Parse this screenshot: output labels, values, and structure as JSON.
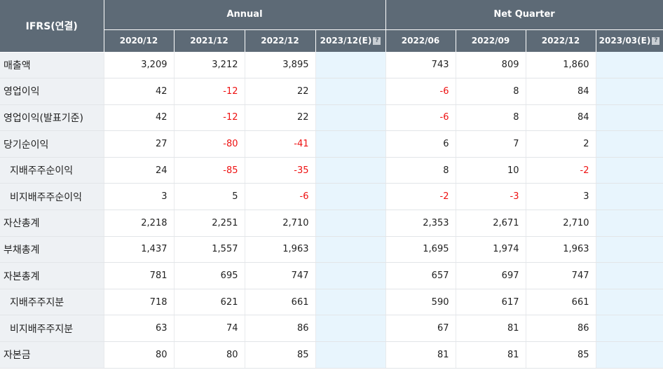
{
  "header": {
    "corner": "IFRS(연결)",
    "group_annual": "Annual",
    "group_quarter": "Net Quarter",
    "annual_periods": [
      "2020/12",
      "2021/12",
      "2022/12",
      "2023/12(E)"
    ],
    "quarter_periods": [
      "2022/06",
      "2022/09",
      "2022/12",
      "2023/03(E)"
    ],
    "estimate_help_icon": "?"
  },
  "colors": {
    "header_bg": "#5d6a76",
    "label_bg": "#eef1f4",
    "estimate_bg": "#e8f5fd",
    "negative": "#ee1111"
  },
  "rows": [
    {
      "label": "매출액",
      "sub": false,
      "annual": [
        "3,209",
        "3,212",
        "3,895",
        ""
      ],
      "quarter": [
        "743",
        "809",
        "1,860",
        ""
      ]
    },
    {
      "label": "영업이익",
      "sub": false,
      "annual": [
        "42",
        "-12",
        "22",
        ""
      ],
      "quarter": [
        "-6",
        "8",
        "84",
        ""
      ]
    },
    {
      "label": "영업이익(발표기준)",
      "sub": false,
      "annual": [
        "42",
        "-12",
        "22",
        ""
      ],
      "quarter": [
        "-6",
        "8",
        "84",
        ""
      ]
    },
    {
      "label": "당기순이익",
      "sub": false,
      "annual": [
        "27",
        "-80",
        "-41",
        ""
      ],
      "quarter": [
        "6",
        "7",
        "2",
        ""
      ]
    },
    {
      "label": "지배주주순이익",
      "sub": true,
      "annual": [
        "24",
        "-85",
        "-35",
        ""
      ],
      "quarter": [
        "8",
        "10",
        "-2",
        ""
      ]
    },
    {
      "label": "비지배주주순이익",
      "sub": true,
      "annual": [
        "3",
        "5",
        "-6",
        ""
      ],
      "quarter": [
        "-2",
        "-3",
        "3",
        ""
      ]
    },
    {
      "label": "자산총계",
      "sub": false,
      "annual": [
        "2,218",
        "2,251",
        "2,710",
        ""
      ],
      "quarter": [
        "2,353",
        "2,671",
        "2,710",
        ""
      ]
    },
    {
      "label": "부채총계",
      "sub": false,
      "annual": [
        "1,437",
        "1,557",
        "1,963",
        ""
      ],
      "quarter": [
        "1,695",
        "1,974",
        "1,963",
        ""
      ]
    },
    {
      "label": "자본총계",
      "sub": false,
      "annual": [
        "781",
        "695",
        "747",
        ""
      ],
      "quarter": [
        "657",
        "697",
        "747",
        ""
      ]
    },
    {
      "label": "지배주주지분",
      "sub": true,
      "annual": [
        "718",
        "621",
        "661",
        ""
      ],
      "quarter": [
        "590",
        "617",
        "661",
        ""
      ]
    },
    {
      "label": "비지배주주지분",
      "sub": true,
      "annual": [
        "63",
        "74",
        "86",
        ""
      ],
      "quarter": [
        "67",
        "81",
        "86",
        ""
      ]
    },
    {
      "label": "자본금",
      "sub": false,
      "annual": [
        "80",
        "80",
        "85",
        ""
      ],
      "quarter": [
        "81",
        "81",
        "85",
        ""
      ]
    }
  ]
}
